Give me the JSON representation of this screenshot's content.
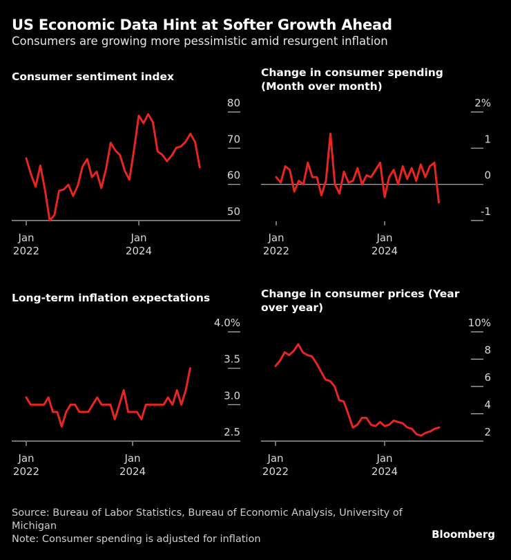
{
  "header": {
    "title": "US Economic Data Hint at Softer Growth Ahead",
    "subtitle": "Consumers are growing more pessimistic amid resurgent inflation"
  },
  "chart_data": [
    {
      "type": "line",
      "title": "Consumer sentiment index",
      "title_lines": [
        "Consumer sentiment index"
      ],
      "color": "#e8251f",
      "ylim": [
        50,
        80
      ],
      "y_ticks": [
        "80",
        "70",
        "60",
        "50"
      ],
      "y_tick_values": [
        80,
        70,
        60,
        50
      ],
      "x_ticks": [
        {
          "month": "2022-01",
          "line1": "Jan",
          "line2": "2022"
        },
        {
          "month": "2024-01",
          "line1": "Jan",
          "line2": "2024"
        }
      ],
      "x": [
        "2022-01",
        "2022-02",
        "2022-03",
        "2022-04",
        "2022-05",
        "2022-06",
        "2022-07",
        "2022-08",
        "2022-09",
        "2022-10",
        "2022-11",
        "2022-12",
        "2023-01",
        "2023-02",
        "2023-03",
        "2023-04",
        "2023-05",
        "2023-06",
        "2023-07",
        "2023-08",
        "2023-09",
        "2023-10",
        "2023-11",
        "2023-12",
        "2024-01",
        "2024-02",
        "2024-03",
        "2024-04",
        "2024-05",
        "2024-06",
        "2024-07",
        "2024-08",
        "2024-09",
        "2024-10",
        "2024-11",
        "2024-12",
        "2025-01",
        "2025-02"
      ],
      "values": [
        67.2,
        62.8,
        59.4,
        65.2,
        58.4,
        50.0,
        51.5,
        58.2,
        58.6,
        59.9,
        56.8,
        59.7,
        64.9,
        67.0,
        62.0,
        63.5,
        59.0,
        64.2,
        71.5,
        69.4,
        68.1,
        63.8,
        61.3,
        69.7,
        79.0,
        76.9,
        79.4,
        77.2,
        69.1,
        68.2,
        66.4,
        67.9,
        70.1,
        70.5,
        71.8,
        74.0,
        71.7,
        64.7
      ]
    },
    {
      "type": "line",
      "title": "Change in consumer spending (Month over month)",
      "title_lines": [
        "Change in consumer spending",
        "(Month over month)"
      ],
      "color": "#e8251f",
      "ylim": [
        -1,
        2
      ],
      "zero_line": true,
      "y_ticks": [
        "2%",
        "1",
        "0",
        "-1"
      ],
      "y_tick_values": [
        2,
        1,
        0,
        -1
      ],
      "x_ticks": [
        {
          "month": "2022-01",
          "line1": "Jan",
          "line2": "2022"
        },
        {
          "month": "2024-01",
          "line1": "Jan",
          "line2": "2024"
        }
      ],
      "x": [
        "2022-01",
        "2022-02",
        "2022-03",
        "2022-04",
        "2022-05",
        "2022-06",
        "2022-07",
        "2022-08",
        "2022-09",
        "2022-10",
        "2022-11",
        "2022-12",
        "2023-01",
        "2023-02",
        "2023-03",
        "2023-04",
        "2023-05",
        "2023-06",
        "2023-07",
        "2023-08",
        "2023-09",
        "2023-10",
        "2023-11",
        "2023-12",
        "2024-01",
        "2024-02",
        "2024-03",
        "2024-04",
        "2024-05",
        "2024-06",
        "2024-07",
        "2024-08",
        "2024-09",
        "2024-10",
        "2024-11",
        "2024-12",
        "2025-01"
      ],
      "values": [
        0.2,
        0.05,
        0.5,
        0.4,
        -0.2,
        0.1,
        0.0,
        0.6,
        0.2,
        0.2,
        -0.3,
        0.1,
        1.4,
        0.0,
        -0.25,
        0.35,
        0.05,
        0.1,
        0.45,
        0.0,
        0.25,
        0.2,
        0.4,
        0.6,
        -0.35,
        0.2,
        0.4,
        0.0,
        0.5,
        0.15,
        0.45,
        0.1,
        0.55,
        0.2,
        0.5,
        0.6,
        -0.5
      ]
    },
    {
      "type": "line",
      "title": "Long-term inflation expectations",
      "title_lines": [
        "Long-term inflation expectations"
      ],
      "color": "#e8251f",
      "ylim": [
        2.5,
        4.0
      ],
      "y_ticks": [
        "4.0%",
        "3.5",
        "3.0",
        "2.5"
      ],
      "y_tick_values": [
        4.0,
        3.5,
        3.0,
        2.5
      ],
      "x_ticks": [
        {
          "month": "2022-01",
          "line1": "Jan",
          "line2": "2022"
        },
        {
          "month": "2024-01",
          "line1": "Jan",
          "line2": "2024"
        }
      ],
      "x": [
        "2022-01",
        "2022-02",
        "2022-03",
        "2022-04",
        "2022-05",
        "2022-06",
        "2022-07",
        "2022-08",
        "2022-09",
        "2022-10",
        "2022-11",
        "2022-12",
        "2023-01",
        "2023-02",
        "2023-03",
        "2023-04",
        "2023-05",
        "2023-06",
        "2023-07",
        "2023-08",
        "2023-09",
        "2023-10",
        "2023-11",
        "2023-12",
        "2024-01",
        "2024-02",
        "2024-03",
        "2024-04",
        "2024-05",
        "2024-06",
        "2024-07",
        "2024-08",
        "2024-09",
        "2024-10",
        "2024-11",
        "2024-12",
        "2025-01",
        "2025-02"
      ],
      "values": [
        3.1,
        3.0,
        3.0,
        3.0,
        3.0,
        3.1,
        2.9,
        2.9,
        2.7,
        2.9,
        3.0,
        3.0,
        2.9,
        2.9,
        2.9,
        3.0,
        3.1,
        3.0,
        3.0,
        3.0,
        2.8,
        3.0,
        3.2,
        2.9,
        2.9,
        2.9,
        2.8,
        3.0,
        3.0,
        3.0,
        3.0,
        3.0,
        3.1,
        3.0,
        3.2,
        3.0,
        3.2,
        3.5
      ]
    },
    {
      "type": "line",
      "title": "Change in consumer prices (Year over year)",
      "title_lines": [
        "Change in consumer prices (Year",
        "over year)"
      ],
      "color": "#e8251f",
      "ylim": [
        2,
        10
      ],
      "y_ticks": [
        "10%",
        "8",
        "6",
        "4",
        "2"
      ],
      "y_tick_values": [
        10,
        8,
        6,
        4,
        2
      ],
      "x_ticks": [
        {
          "month": "2022-01",
          "line1": "Jan",
          "line2": "2022"
        },
        {
          "month": "2024-01",
          "line1": "Jan",
          "line2": "2024"
        }
      ],
      "x": [
        "2022-01",
        "2022-02",
        "2022-03",
        "2022-04",
        "2022-05",
        "2022-06",
        "2022-07",
        "2022-08",
        "2022-09",
        "2022-10",
        "2022-11",
        "2022-12",
        "2023-01",
        "2023-02",
        "2023-03",
        "2023-04",
        "2023-05",
        "2023-06",
        "2023-07",
        "2023-08",
        "2023-09",
        "2023-10",
        "2023-11",
        "2023-12",
        "2024-01",
        "2024-02",
        "2024-03",
        "2024-04",
        "2024-05",
        "2024-06",
        "2024-07",
        "2024-08",
        "2024-09",
        "2024-10",
        "2024-11",
        "2024-12",
        "2025-01"
      ],
      "values": [
        7.5,
        7.9,
        8.5,
        8.3,
        8.6,
        9.1,
        8.5,
        8.3,
        8.2,
        7.7,
        7.1,
        6.5,
        6.4,
        6.0,
        5.0,
        4.9,
        4.0,
        3.0,
        3.2,
        3.7,
        3.7,
        3.2,
        3.1,
        3.4,
        3.1,
        3.2,
        3.5,
        3.4,
        3.3,
        3.0,
        2.9,
        2.5,
        2.4,
        2.6,
        2.7,
        2.9,
        3.0
      ]
    }
  ],
  "footer": {
    "source": "Source: Bureau of Labor Statistics, Bureau of Economic Analysis, University of Michigan",
    "note": "Note: Consumer spending is adjusted for inflation",
    "brand": "Bloomberg"
  }
}
